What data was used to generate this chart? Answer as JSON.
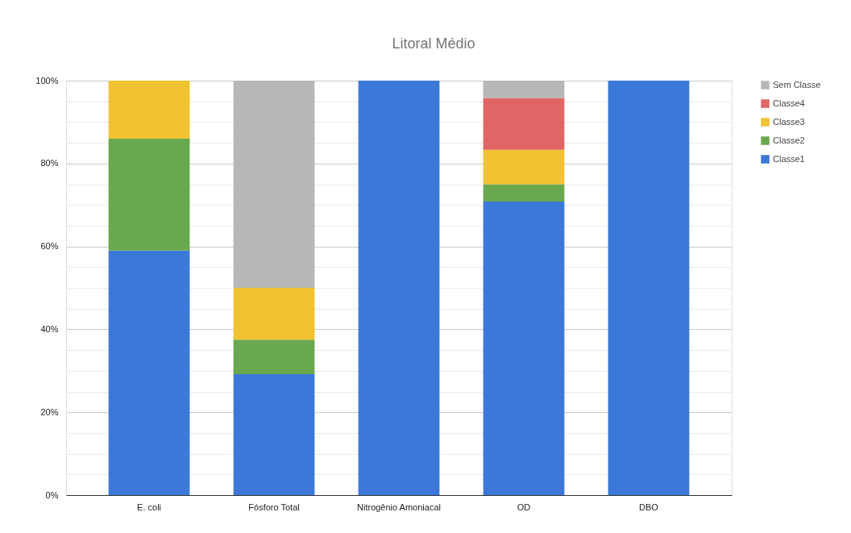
{
  "chart_data": {
    "type": "bar",
    "title": "Litoral Médio",
    "stacked": true,
    "grid": "y",
    "legend": "top right",
    "categories": [
      "E. coli",
      "Fósforo Total",
      "Nitrogênio Amoniacal",
      "OD",
      "DBO"
    ],
    "series": [
      {
        "name": "Classe1",
        "color": "#3c78d8",
        "values": [
          59,
          29.2,
          100,
          70.8,
          100
        ]
      },
      {
        "name": "Classe2",
        "color": "#6aa84f",
        "values": [
          27,
          8.3,
          null,
          4.2,
          null
        ]
      },
      {
        "name": "Classe3",
        "color": "#f1c232",
        "values": [
          14,
          12.5,
          null,
          8.3,
          null
        ]
      },
      {
        "name": "Classe4",
        "color": "#e06666",
        "values": [
          null,
          null,
          null,
          12.5,
          null
        ]
      },
      {
        "name": "Sem Classe",
        "color": "#b7b7b7",
        "values": [
          null,
          50,
          null,
          4.2,
          null
        ]
      }
    ],
    "ylim": [
      0,
      100
    ],
    "yticks": [
      {
        "value": 0,
        "label": "0%"
      },
      {
        "value": 5,
        "label": null
      },
      {
        "value": 10,
        "label": null
      },
      {
        "value": 15,
        "label": null
      },
      {
        "value": 20,
        "label": "20%"
      },
      {
        "value": 25,
        "label": null
      },
      {
        "value": 30,
        "label": null
      },
      {
        "value": 35,
        "label": null
      },
      {
        "value": 40,
        "label": "40%"
      },
      {
        "value": 45,
        "label": null
      },
      {
        "value": 50,
        "label": null
      },
      {
        "value": 55,
        "label": null
      },
      {
        "value": 60,
        "label": "60%"
      },
      {
        "value": 65,
        "label": null
      },
      {
        "value": 70,
        "label": null
      },
      {
        "value": 75,
        "label": null
      },
      {
        "value": 80,
        "label": "80%"
      },
      {
        "value": 85,
        "label": null
      },
      {
        "value": 90,
        "label": null
      },
      {
        "value": 95,
        "label": null
      },
      {
        "value": 100,
        "label": "100%"
      }
    ]
  }
}
